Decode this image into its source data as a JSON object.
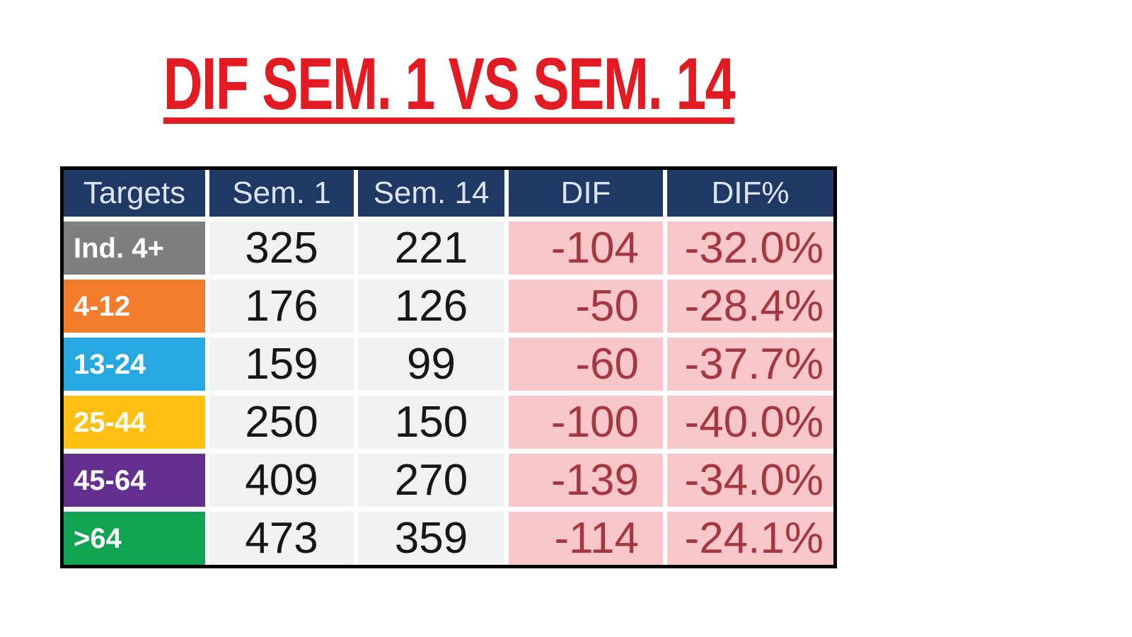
{
  "title": "DIF SEM. 1 VS SEM. 14",
  "title_color": "#E21B22",
  "table": {
    "columns": [
      "Targets",
      "Sem. 1",
      "Sem. 14",
      "DIF",
      "DIF%"
    ],
    "header_bg": "#1F3864",
    "body_bg": "#F1F1F1",
    "pink_bg": "#F9C7CA",
    "dif_text_color": "#A43842",
    "dif_text_color_bold": "#B5121B",
    "rows": [
      {
        "label": "Ind. 4+",
        "color": "#7F7F7F",
        "sem1": "325",
        "sem14": "221",
        "dif": "-104",
        "difpct": "-32.0%"
      },
      {
        "label": "4-12",
        "color": "#F07C2C",
        "sem1": "176",
        "sem14": "126",
        "dif": "-50",
        "difpct": "-28.4%"
      },
      {
        "label": "13-24",
        "color": "#25A9E0",
        "sem1": "159",
        "sem14": "99",
        "dif": "-60",
        "difpct": "-37.7%"
      },
      {
        "label": "25-44",
        "color": "#FFC013",
        "sem1": "250",
        "sem14": "150",
        "dif": "-100",
        "difpct": "-40.0%"
      },
      {
        "label": "45-64",
        "color": "#63308F",
        "sem1": "409",
        "sem14": "270",
        "dif": "-139",
        "difpct": "-34.0%"
      },
      {
        "label": ">64",
        "color": "#0FA352",
        "sem1": "473",
        "sem14": "359",
        "dif": "-114",
        "difpct": "-24.1%"
      }
    ]
  },
  "chart_data": {
    "type": "table",
    "title": "DIF SEM. 1 VS SEM. 14",
    "categories": [
      "Ind. 4+",
      "4-12",
      "13-24",
      "25-44",
      "45-64",
      ">64"
    ],
    "series": [
      {
        "name": "Sem. 1",
        "values": [
          325,
          176,
          159,
          250,
          409,
          473
        ]
      },
      {
        "name": "Sem. 14",
        "values": [
          221,
          126,
          99,
          150,
          270,
          359
        ]
      },
      {
        "name": "DIF",
        "values": [
          -104,
          -50,
          -60,
          -100,
          -139,
          -114
        ]
      },
      {
        "name": "DIF%",
        "values": [
          -32.0,
          -28.4,
          -37.7,
          -40.0,
          -34.0,
          -24.1
        ]
      }
    ]
  }
}
